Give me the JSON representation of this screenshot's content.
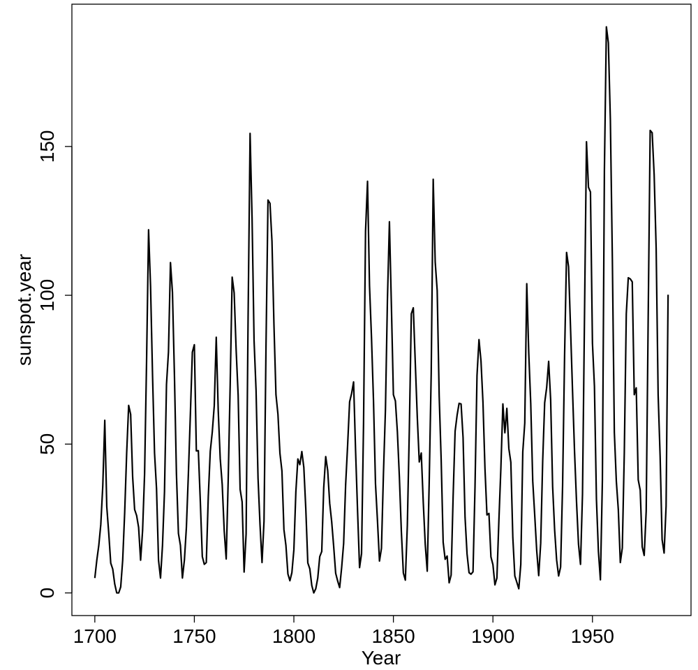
{
  "chart_data": {
    "type": "line",
    "x_label": "Year",
    "y_label": "sunspot.year",
    "x": [
      1700,
      1701,
      1702,
      1703,
      1704,
      1705,
      1706,
      1707,
      1708,
      1709,
      1710,
      1711,
      1712,
      1713,
      1714,
      1715,
      1716,
      1717,
      1718,
      1719,
      1720,
      1721,
      1722,
      1723,
      1724,
      1725,
      1726,
      1727,
      1728,
      1729,
      1730,
      1731,
      1732,
      1733,
      1734,
      1735,
      1736,
      1737,
      1738,
      1739,
      1740,
      1741,
      1742,
      1743,
      1744,
      1745,
      1746,
      1747,
      1748,
      1749,
      1750,
      1751,
      1752,
      1753,
      1754,
      1755,
      1756,
      1757,
      1758,
      1759,
      1760,
      1761,
      1762,
      1763,
      1764,
      1765,
      1766,
      1767,
      1768,
      1769,
      1770,
      1771,
      1772,
      1773,
      1774,
      1775,
      1776,
      1777,
      1778,
      1779,
      1780,
      1781,
      1782,
      1783,
      1784,
      1785,
      1786,
      1787,
      1788,
      1789,
      1790,
      1791,
      1792,
      1793,
      1794,
      1795,
      1796,
      1797,
      1798,
      1799,
      1800,
      1801,
      1802,
      1803,
      1804,
      1805,
      1806,
      1807,
      1808,
      1809,
      1810,
      1811,
      1812,
      1813,
      1814,
      1815,
      1816,
      1817,
      1818,
      1819,
      1820,
      1821,
      1822,
      1823,
      1824,
      1825,
      1826,
      1827,
      1828,
      1829,
      1830,
      1831,
      1832,
      1833,
      1834,
      1835,
      1836,
      1837,
      1838,
      1839,
      1840,
      1841,
      1842,
      1843,
      1844,
      1845,
      1846,
      1847,
      1848,
      1849,
      1850,
      1851,
      1852,
      1853,
      1854,
      1855,
      1856,
      1857,
      1858,
      1859,
      1860,
      1861,
      1862,
      1863,
      1864,
      1865,
      1866,
      1867,
      1868,
      1869,
      1870,
      1871,
      1872,
      1873,
      1874,
      1875,
      1876,
      1877,
      1878,
      1879,
      1880,
      1881,
      1882,
      1883,
      1884,
      1885,
      1886,
      1887,
      1888,
      1889,
      1890,
      1891,
      1892,
      1893,
      1894,
      1895,
      1896,
      1897,
      1898,
      1899,
      1900,
      1901,
      1902,
      1903,
      1904,
      1905,
      1906,
      1907,
      1908,
      1909,
      1910,
      1911,
      1912,
      1913,
      1914,
      1915,
      1916,
      1917,
      1918,
      1919,
      1920,
      1921,
      1922,
      1923,
      1924,
      1925,
      1926,
      1927,
      1928,
      1929,
      1930,
      1931,
      1932,
      1933,
      1934,
      1935,
      1936,
      1937,
      1938,
      1939,
      1940,
      1941,
      1942,
      1943,
      1944,
      1945,
      1946,
      1947,
      1948,
      1949,
      1950,
      1951,
      1952,
      1953,
      1954,
      1955,
      1956,
      1957,
      1958,
      1959,
      1960,
      1961,
      1962,
      1963,
      1964,
      1965,
      1966,
      1967,
      1968,
      1969,
      1970,
      1971,
      1972,
      1973,
      1974,
      1975,
      1976,
      1977,
      1978,
      1979,
      1980,
      1981,
      1982,
      1983,
      1984,
      1985,
      1986,
      1987,
      1988
    ],
    "series": [
      {
        "color": "#000000",
        "values": [
          5,
          11,
          16,
          23,
          36,
          58,
          29,
          20,
          10,
          8,
          3,
          0,
          0,
          2,
          11,
          27,
          47,
          63,
          60,
          39,
          28,
          26,
          22,
          11,
          21,
          40,
          78,
          122,
          103,
          73,
          47,
          35,
          11,
          5,
          16,
          34,
          70,
          81,
          111,
          101,
          73,
          40,
          20,
          16,
          5,
          11,
          22,
          40,
          60,
          80.9,
          83.4,
          47.7,
          47.8,
          30.7,
          12.2,
          9.6,
          10.2,
          32.4,
          47.6,
          54,
          62.9,
          85.9,
          61.2,
          45.1,
          36.4,
          20.9,
          11.4,
          37.8,
          69.8,
          106.1,
          100.8,
          81.6,
          66.5,
          34.8,
          30.6,
          7,
          19.8,
          92.5,
          154.4,
          125.9,
          84.8,
          68.1,
          38.5,
          22.8,
          10.2,
          24.1,
          82.9,
          132,
          130.9,
          118.1,
          89.9,
          66.6,
          60,
          46.9,
          41,
          21.3,
          16,
          6.4,
          4.1,
          6.8,
          14.5,
          34,
          45,
          43.1,
          47.5,
          42.2,
          28.1,
          10.1,
          8.1,
          2.5,
          0,
          1.4,
          5,
          12.2,
          13.9,
          35.4,
          45.8,
          41.1,
          30.1,
          23.9,
          15.6,
          6.6,
          4,
          1.8,
          8.5,
          16.6,
          36.3,
          49.6,
          64.2,
          67,
          70.9,
          47.8,
          27.5,
          8.5,
          13.2,
          56.9,
          121.5,
          138.3,
          103.2,
          85.7,
          64.6,
          36.7,
          24.2,
          10.7,
          15,
          40.1,
          61.5,
          98.5,
          124.7,
          96.3,
          66.6,
          64.5,
          54.1,
          39,
          20.6,
          6.7,
          4.3,
          22.7,
          54.8,
          93.8,
          95.8,
          77.2,
          59.1,
          44,
          47,
          30.5,
          16.3,
          7.3,
          37.6,
          74,
          139,
          111.2,
          101.6,
          66.2,
          44.7,
          17,
          11.3,
          12.4,
          3.4,
          6,
          32.3,
          54.3,
          59.7,
          63.7,
          63.5,
          52.2,
          25.4,
          13.1,
          6.8,
          6.3,
          7.1,
          35.6,
          73,
          85.1,
          78,
          64,
          41.8,
          26.2,
          26.7,
          12.1,
          9.5,
          2.7,
          5,
          24.4,
          42,
          63.5,
          53.8,
          62,
          48.5,
          43.9,
          18.6,
          5.7,
          3.6,
          1.4,
          9.6,
          47.4,
          57.1,
          103.9,
          80.6,
          63.6,
          37.6,
          26.1,
          14.2,
          5.8,
          16.7,
          44.3,
          63.9,
          69,
          77.8,
          64.9,
          35.7,
          21.2,
          11.1,
          5.7,
          8.7,
          36.1,
          79.7,
          114.4,
          109.6,
          88.8,
          67.8,
          47.5,
          30.6,
          16.3,
          9.6,
          33.2,
          92.6,
          151.6,
          136.3,
          134.7,
          83.9,
          69.4,
          31.5,
          13.9,
          4.4,
          38,
          141.7,
          190.2,
          184.8,
          159,
          112.3,
          53.9,
          37.5,
          27.9,
          10.2,
          15.1,
          47,
          93.8,
          105.9,
          105.5,
          104.5,
          66.6,
          68.9,
          38,
          34.5,
          15.5,
          12.6,
          27.5,
          92.5,
          155.4,
          154.6,
          140.5,
          115.9,
          66.6,
          45.9,
          17.9,
          13.4,
          29.2,
          100.2
        ]
      }
    ],
    "xlim": [
      1688.48,
      1999.52
    ],
    "xticks": [
      1700,
      1750,
      1800,
      1850,
      1900,
      1950
    ],
    "ylim": [
      -7.608,
      197.808
    ],
    "yticks": [
      0,
      50,
      100,
      150
    ]
  }
}
